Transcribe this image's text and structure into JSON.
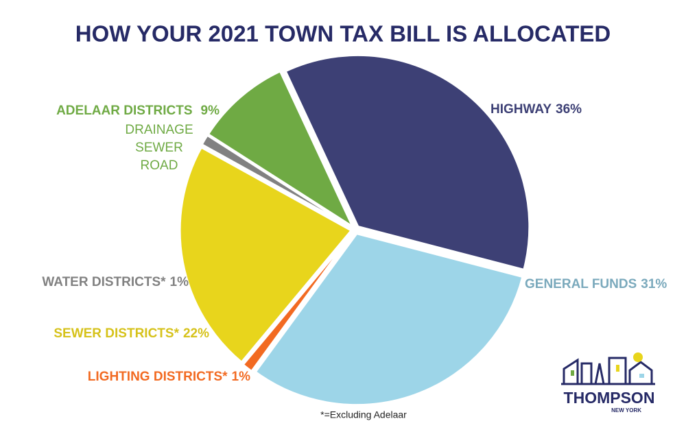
{
  "chart_data": {
    "type": "pie",
    "title": "HOW YOUR 2021 TOWN TAX BILL IS ALLOCATED",
    "categories": [
      "HIGHWAY",
      "GENERAL FUNDS",
      "LIGHTING DISTRICTS*",
      "SEWER DISTRICTS*",
      "WATER DISTRICTS*",
      "ADELAAR DISTRICTS"
    ],
    "values": [
      36,
      31,
      1,
      22,
      1,
      9
    ],
    "value_labels": [
      "36%",
      "31%",
      "1%",
      "22%",
      "1%",
      "9%"
    ],
    "colors": [
      "#3d4075",
      "#9dd5e8",
      "#f26a21",
      "#e8d51c",
      "#818181",
      "#6faa44"
    ],
    "label_colors": [
      "#3d4075",
      "#7aa9bc",
      "#f26a21",
      "#d6c21a",
      "#818181",
      "#6faa44"
    ],
    "adelaar_items": [
      "DRAINAGE",
      "SEWER",
      "ROAD"
    ],
    "footnote": "*=Excluding Adelaar"
  },
  "logo": {
    "name": "THOMPSON",
    "subtitle": "NEW YORK"
  }
}
